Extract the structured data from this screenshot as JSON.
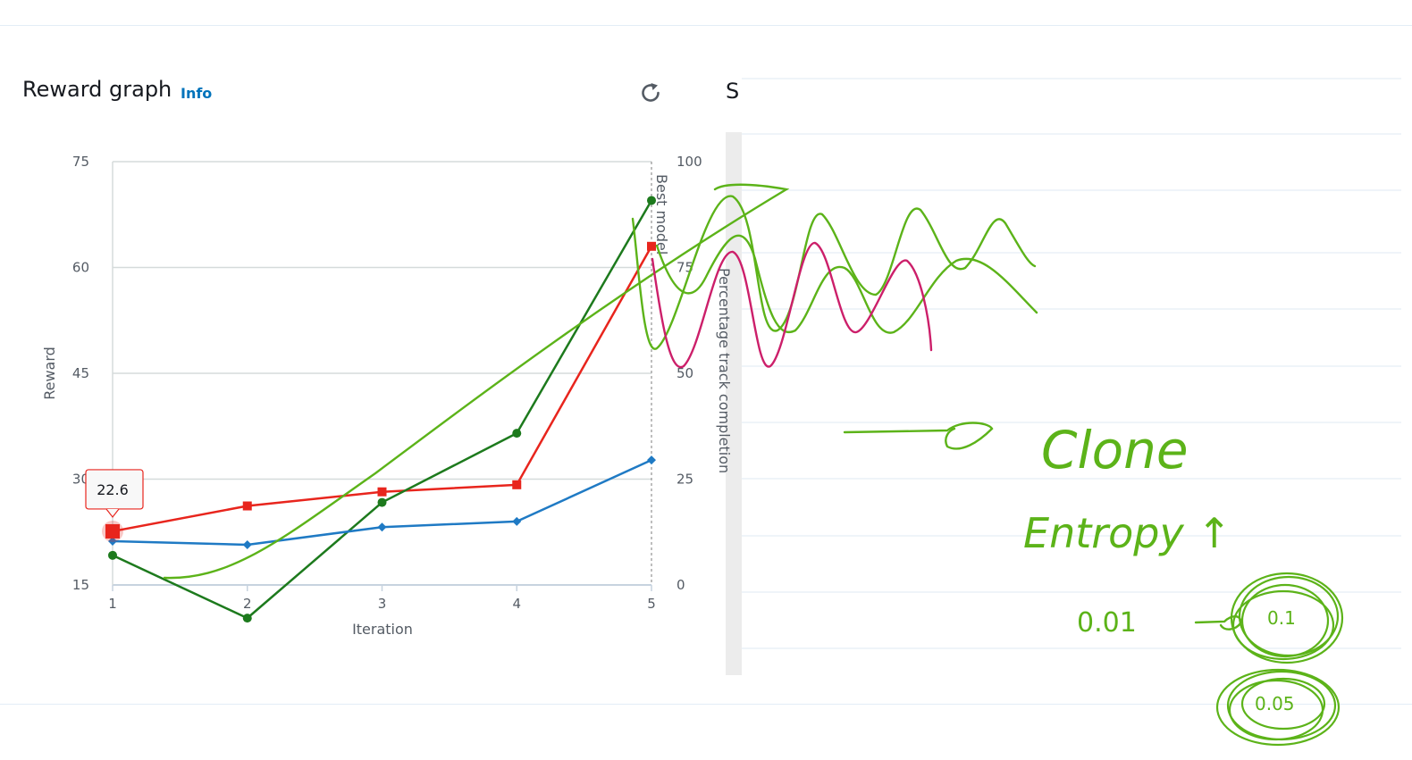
{
  "panel": {
    "title": "Reward graph",
    "info_link": "Info",
    "next_panel_title_fragment": "S"
  },
  "icons": {
    "refresh": "refresh-icon"
  },
  "colors": {
    "series_red": "#e8251d",
    "series_dark_green": "#1d7a1d",
    "series_blue": "#1f7ac4",
    "annotation_green": "#5cb319",
    "annotation_magenta": "#cc1f6a",
    "grid": "#d5dbdb",
    "background": "#ffffff"
  },
  "tooltip": {
    "value": "22.6"
  },
  "notes": {
    "clone": "Clone",
    "entropy": "Entropy ↑",
    "v1": "0.01",
    "v2": "0.1",
    "v3": "0.05"
  },
  "chart_data": {
    "type": "line",
    "title": "",
    "xlabel": "Iteration",
    "ylabel": "Reward",
    "ylabel_right": "Percentage track completion",
    "x": [
      1,
      2,
      3,
      4,
      5
    ],
    "xlim": [
      1,
      5
    ],
    "ylim": [
      15,
      75
    ],
    "ylim_right": [
      0,
      100
    ],
    "yticks": [
      15,
      30,
      45,
      60,
      75
    ],
    "yticks_right": [
      0,
      25,
      50,
      75,
      100
    ],
    "grid": true,
    "legend": "none",
    "marker_line": {
      "x": 5,
      "label": "Best model"
    },
    "series": [
      {
        "axis": "left",
        "marker": "square",
        "color": "#e8251d",
        "values": [
          22.6,
          26.2,
          28.2,
          29.2,
          63.0
        ]
      },
      {
        "axis": "left",
        "marker": "circle",
        "color": "#1d7a1d",
        "values": [
          19.2,
          10.3,
          26.7,
          36.5,
          69.5
        ]
      },
      {
        "axis": "left",
        "marker": "diamond",
        "color": "#1f7ac4",
        "values": [
          21.2,
          20.7,
          23.2,
          24.0,
          32.7
        ]
      }
    ]
  }
}
